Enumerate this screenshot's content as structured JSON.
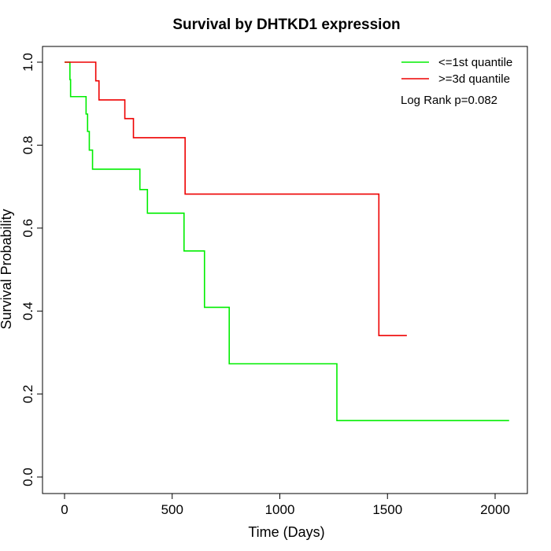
{
  "chart_data": {
    "type": "line",
    "title": "Survival by DHTKD1 expression",
    "xlabel": "Time (Days)",
    "ylabel": "Survival Probability",
    "xlim": [
      0,
      2070
    ],
    "ylim": [
      0,
      1
    ],
    "xticks": [
      0,
      500,
      1000,
      1500,
      2000
    ],
    "yticks": [
      0.0,
      0.2,
      0.4,
      0.6,
      0.8,
      1.0
    ],
    "xtick_labels": [
      "0",
      "500",
      "1000",
      "1500",
      "2000"
    ],
    "ytick_labels": [
      "0.0",
      "0.2",
      "0.4",
      "0.6",
      "0.8",
      "1.0"
    ],
    "grid": false,
    "legend_position": "top-right",
    "annotation": "Log Rank p=0.082",
    "series": [
      {
        "name": "<=1st quantile",
        "color": "#00ee00",
        "step": true,
        "x": [
          0,
          25,
          28,
          100,
          107,
          115,
          130,
          137,
          350,
          385,
          555,
          650,
          765,
          1265,
          2065
        ],
        "y": [
          1.0,
          0.958,
          0.917,
          0.875,
          0.833,
          0.788,
          0.742,
          0.742,
          0.693,
          0.636,
          0.545,
          0.409,
          0.273,
          0.136,
          0.136
        ]
      },
      {
        "name": ">=3d quantile",
        "color": "#ee0000",
        "step": true,
        "x": [
          0,
          145,
          160,
          280,
          320,
          560,
          1460,
          1590
        ],
        "y": [
          1.0,
          0.955,
          0.909,
          0.864,
          0.818,
          0.682,
          0.341,
          0.341
        ]
      }
    ]
  }
}
